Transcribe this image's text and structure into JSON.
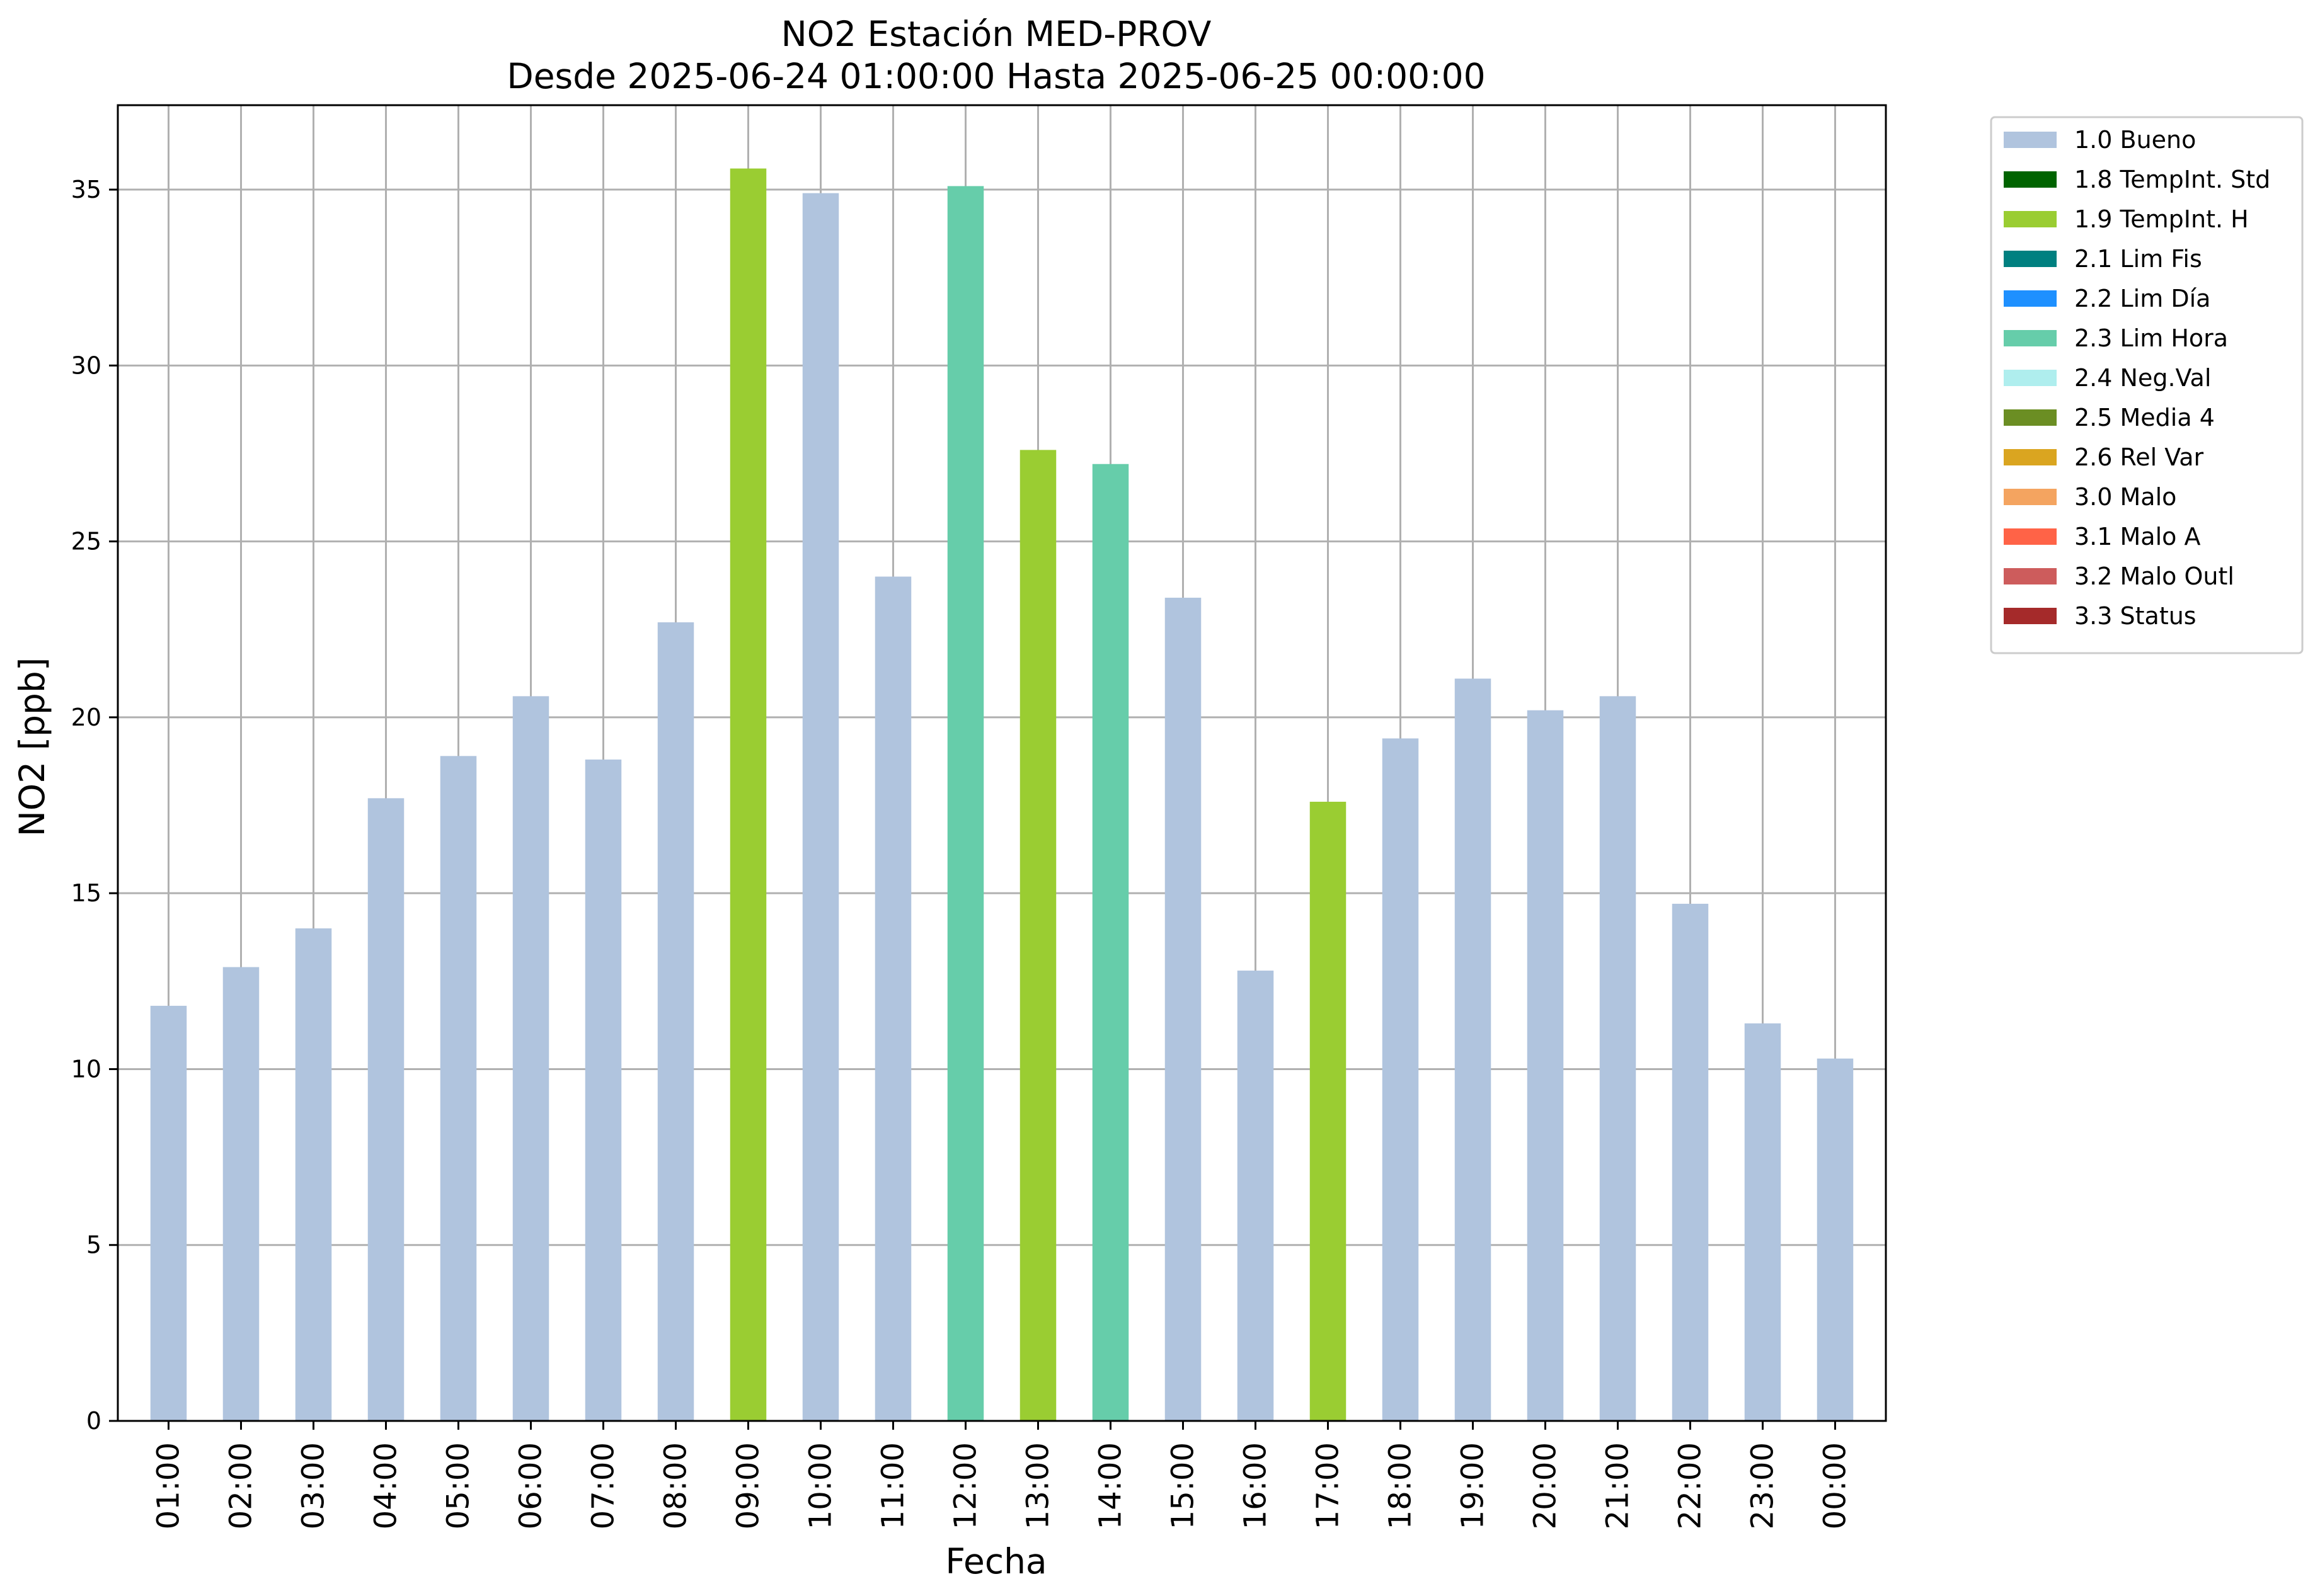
{
  "chart_data": {
    "type": "bar",
    "title": "NO2 Estación MED-PROV",
    "subtitle": "Desde 2025-06-24 01:00:00 Hasta 2025-06-25 00:00:00",
    "xlabel": "Fecha",
    "ylabel": "NO2 [ppb]",
    "ylim": [
      0,
      37.4
    ],
    "yticks": [
      0,
      5,
      10,
      15,
      20,
      25,
      30,
      35
    ],
    "grid": true,
    "legend_position": "outside-top-right",
    "categories": [
      "01:00",
      "02:00",
      "03:00",
      "04:00",
      "05:00",
      "06:00",
      "07:00",
      "08:00",
      "09:00",
      "10:00",
      "11:00",
      "12:00",
      "13:00",
      "14:00",
      "15:00",
      "16:00",
      "17:00",
      "18:00",
      "19:00",
      "20:00",
      "21:00",
      "22:00",
      "23:00",
      "00:00"
    ],
    "values": [
      11.8,
      12.9,
      14.0,
      17.7,
      18.9,
      20.6,
      18.8,
      22.7,
      35.6,
      34.9,
      24.0,
      35.1,
      27.6,
      27.2,
      23.4,
      12.8,
      17.6,
      19.4,
      21.1,
      20.2,
      20.6,
      14.7,
      11.3,
      10.3
    ],
    "flags": [
      "1.0 Bueno",
      "1.0 Bueno",
      "1.0 Bueno",
      "1.0 Bueno",
      "1.0 Bueno",
      "1.0 Bueno",
      "1.0 Bueno",
      "1.0 Bueno",
      "1.9 TempInt. H",
      "1.0 Bueno",
      "1.0 Bueno",
      "2.3 Lim Hora",
      "1.9 TempInt. H",
      "2.3 Lim Hora",
      "1.0 Bueno",
      "1.0 Bueno",
      "1.9 TempInt. H",
      "1.0 Bueno",
      "1.0 Bueno",
      "1.0 Bueno",
      "1.0 Bueno",
      "1.0 Bueno",
      "1.0 Bueno",
      "1.0 Bueno"
    ],
    "legend": [
      {
        "label": "1.0 Bueno",
        "color": "#b0c4de"
      },
      {
        "label": "1.8 TempInt. Std",
        "color": "#006400"
      },
      {
        "label": "1.9 TempInt. H",
        "color": "#9acd32"
      },
      {
        "label": "2.1 Lim Fis",
        "color": "#008080"
      },
      {
        "label": "2.2 Lim Día",
        "color": "#1e90ff"
      },
      {
        "label": "2.3 Lim Hora",
        "color": "#66cdaa"
      },
      {
        "label": "2.4 Neg.Val",
        "color": "#afeeee"
      },
      {
        "label": "2.5 Media 4",
        "color": "#6b8e23"
      },
      {
        "label": "2.6 Rel Var",
        "color": "#daa520"
      },
      {
        "label": "3.0 Malo",
        "color": "#f4a460"
      },
      {
        "label": "3.1 Malo A",
        "color": "#ff6347"
      },
      {
        "label": "3.2 Malo Outl",
        "color": "#cd5c5c"
      },
      {
        "label": "3.3 Status",
        "color": "#a52a2a"
      }
    ]
  }
}
